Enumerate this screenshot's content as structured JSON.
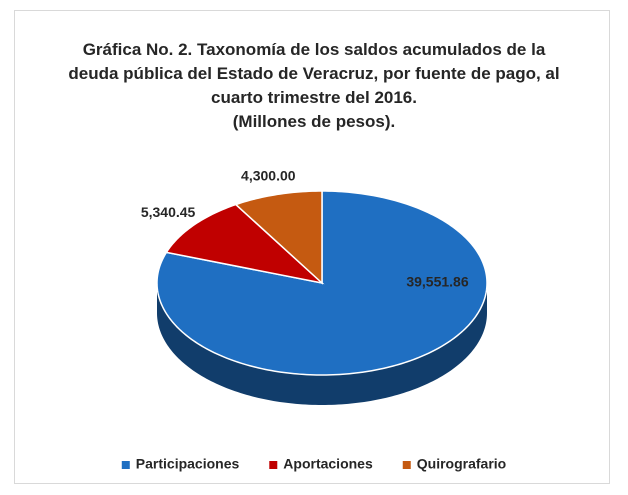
{
  "chart_data": {
    "type": "pie3d",
    "title": "Gráfica No. 2. Taxonomía de los saldos acumulados de la deuda pública del Estado de Veracruz, por fuente de pago, al cuarto trimestre del 2016.",
    "subtitle": "(Millones de pesos).",
    "series": [
      {
        "name": "Participaciones",
        "color": "#1f6fc2",
        "values": [
          39551.86
        ],
        "value_labels": [
          "39,551.86"
        ]
      },
      {
        "name": "Aportaciones",
        "color": "#c00000",
        "values": [
          5340.45
        ],
        "value_labels": [
          "5,340.45"
        ]
      },
      {
        "name": "Quirografario",
        "color": "#c55a11",
        "values": [
          4300.0
        ],
        "value_labels": [
          "4,300.00"
        ]
      }
    ],
    "legend": "bottom"
  }
}
